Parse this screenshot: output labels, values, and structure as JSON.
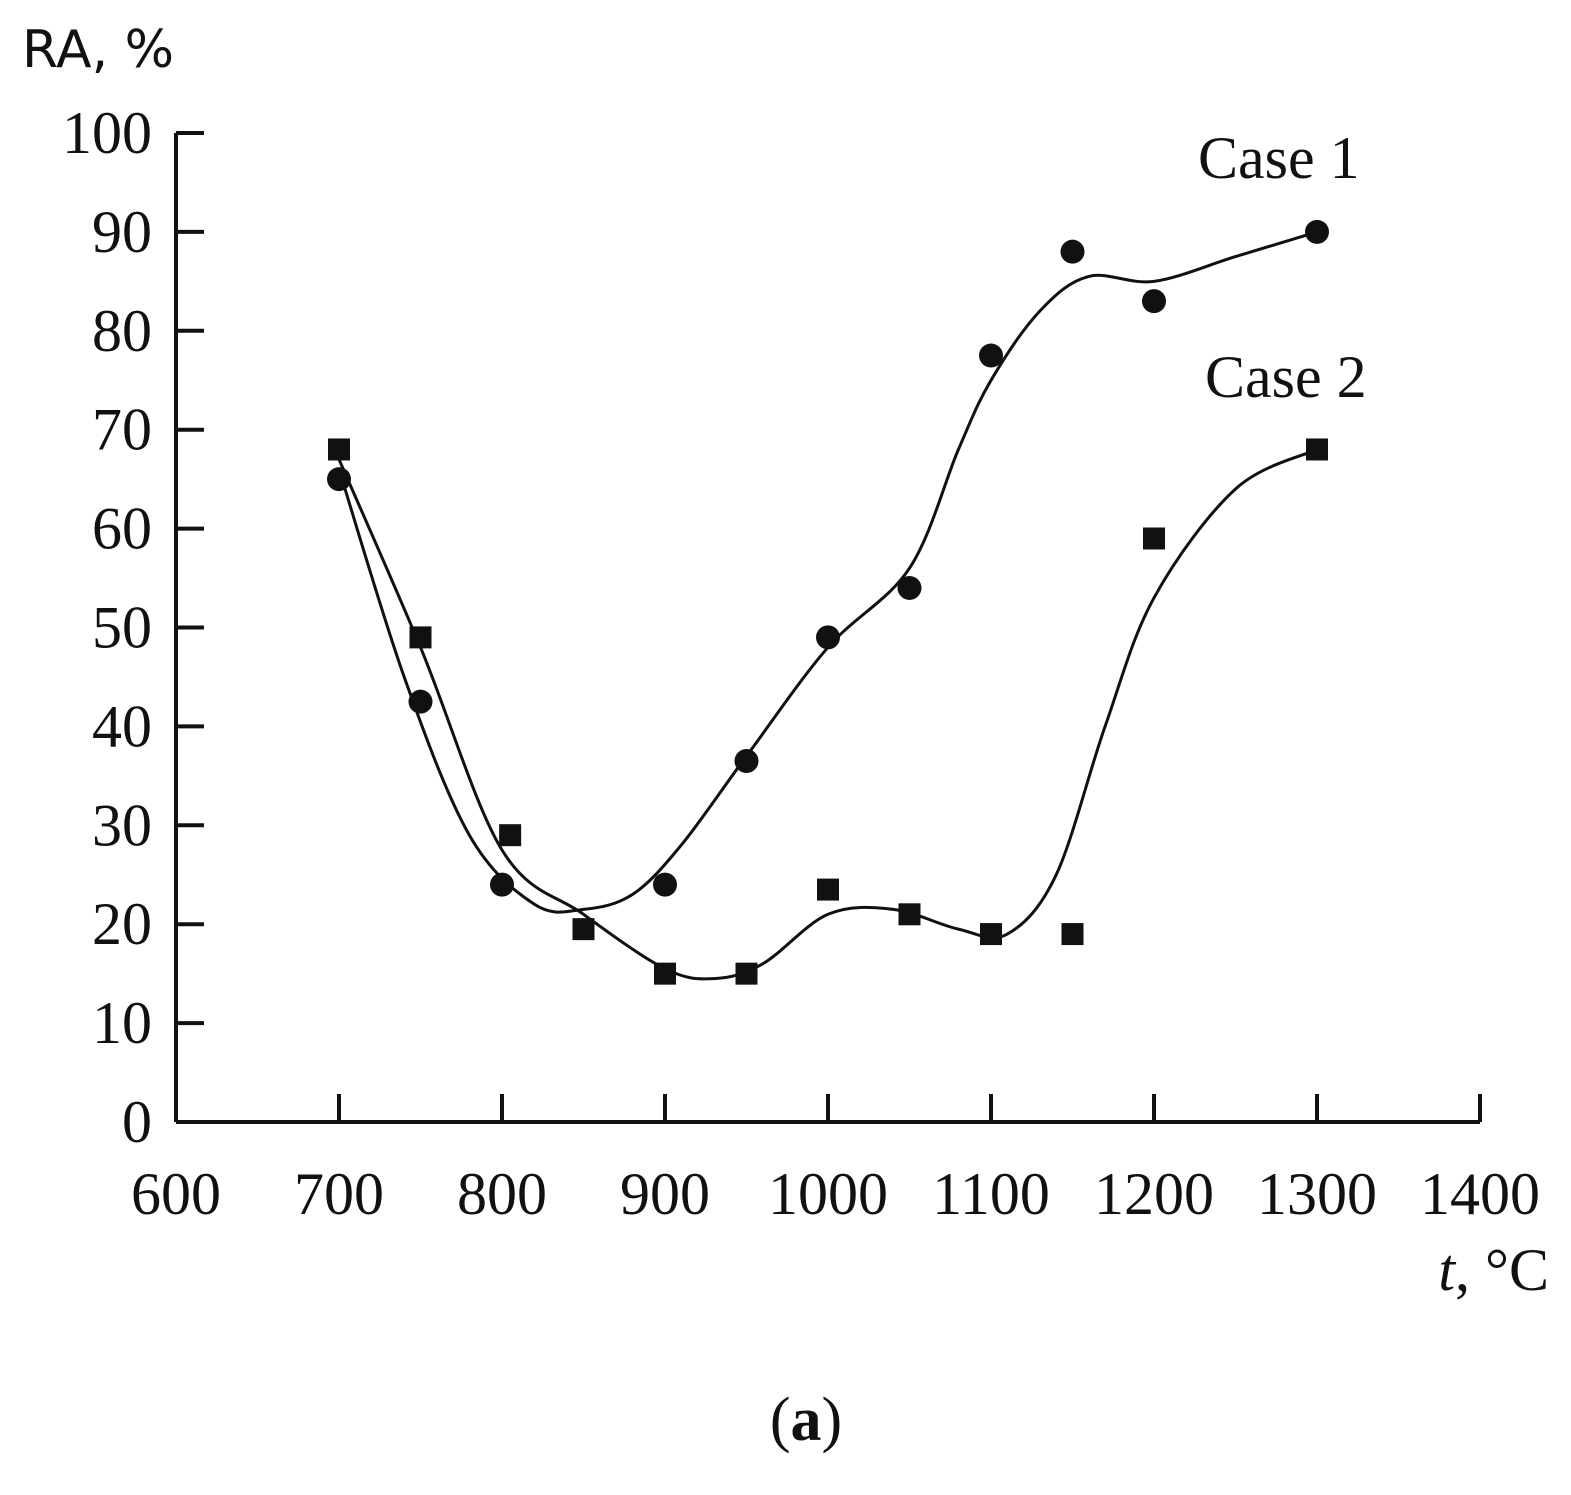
{
  "chart_data": {
    "type": "scatter",
    "ylabel": "RA, %",
    "xlabel_italic": "t",
    "xlabel_rest": ", °C",
    "panel_label_open": "(",
    "panel_label_letter": "a",
    "panel_label_close": ")",
    "xlim": [
      600,
      1400
    ],
    "ylim": [
      0,
      100
    ],
    "x_ticks": [
      600,
      700,
      800,
      900,
      1000,
      1100,
      1200,
      1300,
      1400
    ],
    "y_ticks": [
      0,
      10,
      20,
      30,
      40,
      50,
      60,
      70,
      80,
      90,
      100
    ],
    "grid": false,
    "series": [
      {
        "name": "Case 1",
        "marker": "circle",
        "x": [
          700,
          750,
          800,
          900,
          950,
          1000,
          1050,
          1100,
          1150,
          1200,
          1300
        ],
        "y": [
          65,
          42.5,
          24,
          24,
          36.5,
          49,
          54,
          77.5,
          88,
          83,
          90
        ],
        "curve_x": [
          700,
          740,
          780,
          820,
          850,
          880,
          910,
          950,
          1000,
          1050,
          1080,
          1100,
          1130,
          1160,
          1200,
          1250,
          1300
        ],
        "curve_y": [
          66,
          45,
          29,
          22,
          21.5,
          23,
          28,
          37,
          48,
          56,
          68,
          75,
          82,
          85.5,
          85,
          87.5,
          90
        ]
      },
      {
        "name": "Case 2",
        "marker": "square",
        "x": [
          700,
          750,
          805,
          850,
          900,
          950,
          1000,
          1050,
          1100,
          1150,
          1200,
          1300
        ],
        "y": [
          68,
          49,
          29,
          19.5,
          15,
          15,
          23.5,
          21,
          19,
          19,
          59,
          68
        ],
        "curve_x": [
          700,
          750,
          800,
          850,
          900,
          930,
          960,
          1000,
          1040,
          1080,
          1110,
          1140,
          1170,
          1200,
          1250,
          1300
        ],
        "curve_y": [
          67,
          48,
          27.5,
          21,
          15.5,
          14.5,
          16,
          21,
          21.5,
          19.5,
          19,
          25,
          40,
          53,
          64,
          68
        ]
      }
    ]
  }
}
